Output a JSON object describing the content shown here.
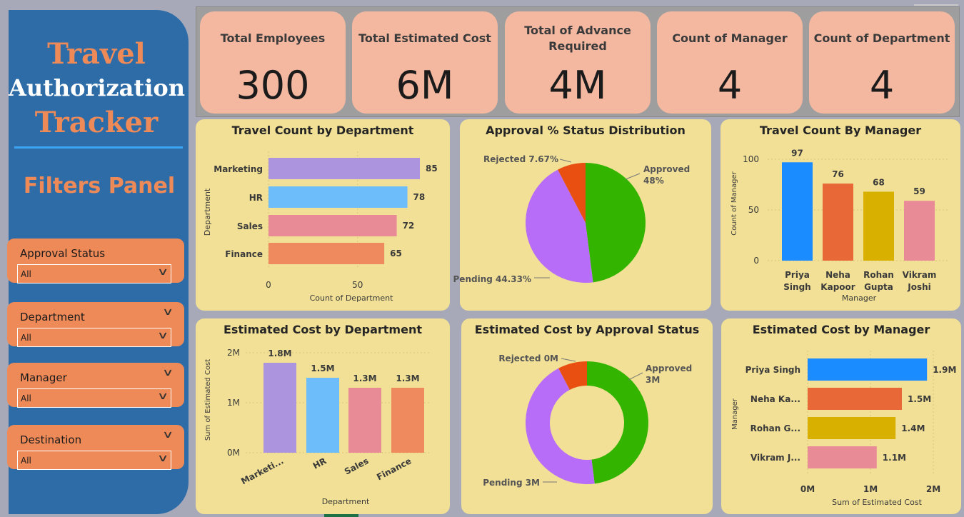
{
  "sidebar": {
    "title_lines": [
      "Travel",
      "Authorization",
      "Tracker"
    ],
    "filters_title": "Filters Panel",
    "filters": [
      {
        "label": "Approval Status",
        "value": "All"
      },
      {
        "label": "Department",
        "value": "All"
      },
      {
        "label": "Manager",
        "value": "All"
      },
      {
        "label": "Destination",
        "value": "All"
      }
    ]
  },
  "kpis": [
    {
      "label": "Total Employees",
      "value": "300"
    },
    {
      "label": "Total Estimated Cost",
      "value": "6M"
    },
    {
      "label": "Total of Advance Required",
      "value": "4M"
    },
    {
      "label": "Count of Manager",
      "value": "4"
    },
    {
      "label": "Count of Department",
      "value": "4"
    }
  ],
  "colors": {
    "purple": "#ad94df",
    "blue": "#6dbdfb",
    "pink": "#e88b96",
    "orange": "#ee8a5e",
    "green": "#33b500",
    "violet": "#b76df8",
    "red": "#e94f10",
    "manager_blue": "#1a8cff",
    "manager_orange": "#e86937",
    "manager_gold": "#d8b100",
    "manager_pink": "#e88b96"
  },
  "chart_data": [
    {
      "id": "travel_count_by_department",
      "type": "bar",
      "orientation": "horizontal",
      "title": "Travel Count by Department",
      "xlabel": "Count of Department",
      "ylabel": "Department",
      "categories": [
        "Marketing",
        "HR",
        "Sales",
        "Finance"
      ],
      "values": [
        85,
        78,
        72,
        65
      ],
      "data_labels": [
        "85",
        "78",
        "72",
        "65"
      ],
      "xticks": [
        "0",
        "50"
      ],
      "xlim": [
        0,
        90
      ]
    },
    {
      "id": "approval_status_distribution",
      "type": "pie",
      "title": "Approval % Status Distribution",
      "categories": [
        "Approved",
        "Pending",
        "Rejected"
      ],
      "values": [
        48,
        44.33,
        7.67
      ],
      "labels": [
        "Approved 48%",
        "Pending 44.33%",
        "Rejected 7.67%"
      ]
    },
    {
      "id": "travel_count_by_manager",
      "type": "bar",
      "orientation": "vertical",
      "title": "Travel Count By Manager",
      "xlabel": "Manager",
      "ylabel": "Count of Manager",
      "categories": [
        "Priya Singh",
        "Neha Kapoor",
        "Rohan Gupta",
        "Vikram Joshi"
      ],
      "values": [
        97,
        76,
        68,
        59
      ],
      "data_labels": [
        "97",
        "76",
        "68",
        "59"
      ],
      "yticks": [
        "0",
        "50",
        "100"
      ],
      "ylim": [
        0,
        100
      ]
    },
    {
      "id": "estimated_cost_by_department",
      "type": "bar",
      "orientation": "vertical",
      "title": "Estimated Cost by Department",
      "xlabel": "Department",
      "ylabel": "Sum of Estimated Cost",
      "categories": [
        "Marketi...",
        "HR",
        "Sales",
        "Finance"
      ],
      "values": [
        1.8,
        1.5,
        1.3,
        1.3
      ],
      "data_labels": [
        "1.8M",
        "1.5M",
        "1.3M",
        "1.3M"
      ],
      "yticks": [
        "0M",
        "1M",
        "2M"
      ],
      "ylim": [
        0,
        2
      ]
    },
    {
      "id": "estimated_cost_by_approval_status",
      "type": "pie",
      "donut": true,
      "title": "Estimated Cost by Approval Status",
      "categories": [
        "Approved",
        "Pending",
        "Rejected"
      ],
      "values": [
        48,
        44.33,
        7.67
      ],
      "labels": [
        "Approved 3M",
        "Pending 3M",
        "Rejected 0M"
      ]
    },
    {
      "id": "estimated_cost_by_manager",
      "type": "bar",
      "orientation": "horizontal",
      "title": "Estimated Cost by Manager",
      "xlabel": "Sum of Estimated Cost",
      "ylabel": "Manager",
      "categories": [
        "Priya Singh",
        "Neha Ka...",
        "Rohan G...",
        "Vikram J..."
      ],
      "values": [
        1.9,
        1.5,
        1.4,
        1.1
      ],
      "data_labels": [
        "1.9M",
        "1.5M",
        "1.4M",
        "1.1M"
      ],
      "xticks": [
        "0M",
        "1M",
        "2M"
      ],
      "xlim": [
        0,
        2
      ]
    }
  ]
}
